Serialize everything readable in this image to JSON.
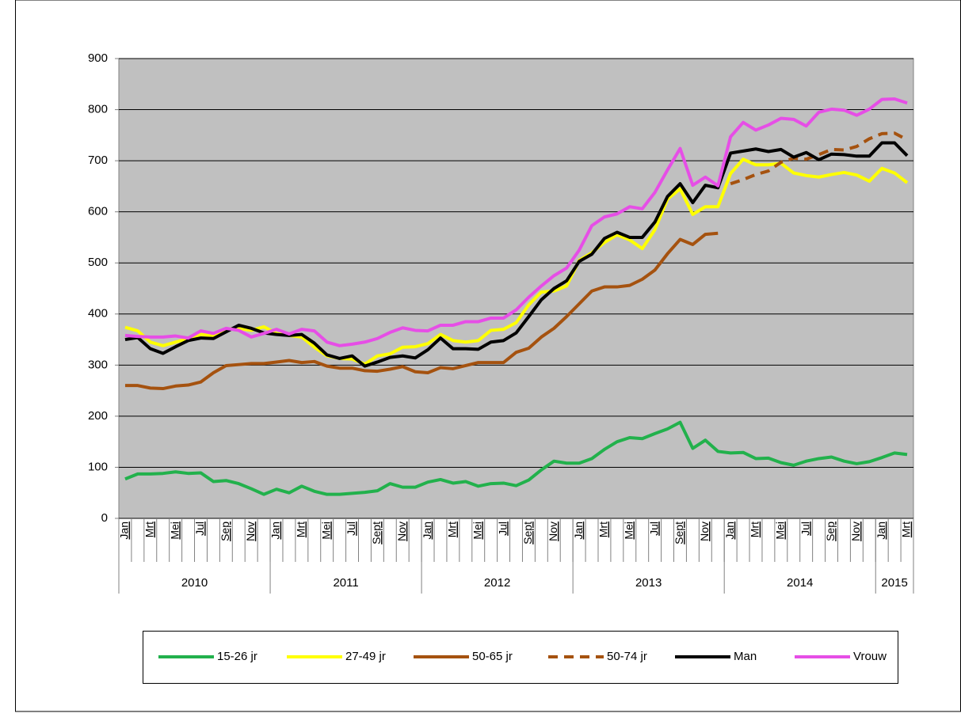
{
  "chart_data": {
    "type": "line",
    "categories": [
      "Jan",
      null,
      "Mrt",
      null,
      "Mei",
      null,
      "Jul",
      null,
      "Sep",
      null,
      "Nov",
      null,
      "Jan",
      null,
      "Mrt",
      null,
      "Mei",
      null,
      "Jul",
      null,
      "Sept",
      null,
      "Nov",
      null,
      "Jan",
      null,
      "Mrt",
      null,
      "Mei",
      null,
      "Jul",
      null,
      "Sept",
      null,
      "Nov",
      null,
      "Jan",
      null,
      "Mrt",
      null,
      "Mei",
      null,
      "Jul",
      null,
      "Sept",
      null,
      "Nov",
      null,
      "Jan",
      null,
      "Mrt",
      null,
      "Mei",
      null,
      "Jul",
      null,
      "Sep",
      null,
      "Nov",
      null,
      "Jan",
      null,
      "Mrt"
    ],
    "years": [
      "2010",
      "2011",
      "2012",
      "2013",
      "2014",
      "2015"
    ],
    "ylim": [
      0,
      900
    ],
    "yticks": [
      0,
      100,
      200,
      300,
      400,
      500,
      600,
      700,
      800,
      900
    ],
    "grid": true,
    "series": [
      {
        "name": "15-26 jr",
        "color": "#22b14c",
        "values": [
          77,
          87,
          87,
          88,
          91,
          88,
          89,
          72,
          74,
          68,
          58,
          47,
          57,
          50,
          63,
          53,
          47,
          47,
          49,
          51,
          54,
          68,
          61,
          61,
          71,
          76,
          69,
          72,
          63,
          68,
          69,
          64,
          75,
          95,
          112,
          108,
          108,
          117,
          135,
          150,
          158,
          156,
          166,
          175,
          188,
          137,
          153,
          131,
          128,
          129,
          117,
          118,
          109,
          104,
          112,
          117,
          120,
          112,
          107,
          111,
          119,
          128,
          125
        ]
      },
      {
        "name": "27-49 jr",
        "color": "#ffff00",
        "values": [
          374,
          367,
          345,
          338,
          345,
          352,
          360,
          357,
          370,
          372,
          368,
          375,
          362,
          358,
          355,
          335,
          318,
          313,
          312,
          302,
          318,
          322,
          335,
          336,
          342,
          360,
          348,
          345,
          348,
          368,
          370,
          383,
          418,
          443,
          445,
          455,
          505,
          520,
          540,
          555,
          545,
          528,
          565,
          625,
          645,
          595,
          610,
          610,
          675,
          703,
          692,
          692,
          695,
          676,
          671,
          668,
          673,
          677,
          672,
          660,
          685,
          676,
          657
        ]
      },
      {
        "name": "50-65 jr",
        "color": "#a5520f",
        "values": [
          260,
          260,
          255,
          254,
          259,
          261,
          267,
          285,
          299,
          301,
          303,
          303,
          306,
          309,
          305,
          307,
          298,
          294,
          294,
          289,
          288,
          292,
          297,
          287,
          285,
          295,
          293,
          299,
          305,
          305,
          305,
          325,
          333,
          355,
          372,
          395,
          420,
          445,
          453,
          453,
          456,
          468,
          486,
          518,
          546,
          536,
          556,
          558,
          null,
          null,
          null,
          null,
          null,
          null,
          null,
          null,
          null,
          null,
          null,
          null,
          null,
          null,
          null
        ]
      },
      {
        "name": "50-74 jr",
        "color": "#a5520f",
        "dashed": true,
        "values": [
          null,
          null,
          null,
          null,
          null,
          null,
          null,
          null,
          null,
          null,
          null,
          null,
          null,
          null,
          null,
          null,
          null,
          null,
          null,
          null,
          null,
          null,
          null,
          null,
          null,
          null,
          null,
          null,
          null,
          null,
          null,
          null,
          null,
          null,
          null,
          null,
          null,
          null,
          null,
          null,
          null,
          null,
          null,
          null,
          null,
          null,
          null,
          null,
          655,
          663,
          673,
          680,
          697,
          705,
          703,
          712,
          722,
          721,
          728,
          743,
          753,
          754,
          741
        ]
      },
      {
        "name": "Man",
        "color": "#000000",
        "values": [
          350,
          354,
          332,
          323,
          336,
          348,
          353,
          352,
          365,
          378,
          372,
          363,
          360,
          358,
          360,
          343,
          320,
          313,
          318,
          298,
          306,
          315,
          318,
          314,
          330,
          353,
          332,
          332,
          331,
          345,
          348,
          363,
          395,
          428,
          450,
          465,
          503,
          517,
          548,
          560,
          550,
          550,
          580,
          630,
          655,
          618,
          652,
          647,
          715,
          719,
          723,
          718,
          722,
          707,
          716,
          702,
          713,
          712,
          709,
          709,
          735,
          735,
          710
        ]
      },
      {
        "name": "Vrouw",
        "color": "#e64ee6",
        "values": [
          358,
          356,
          355,
          355,
          357,
          353,
          367,
          362,
          372,
          368,
          355,
          362,
          370,
          361,
          370,
          367,
          345,
          338,
          341,
          345,
          352,
          364,
          373,
          368,
          367,
          378,
          378,
          385,
          385,
          392,
          392,
          408,
          433,
          455,
          475,
          490,
          525,
          573,
          590,
          596,
          610,
          606,
          638,
          682,
          724,
          652,
          668,
          651,
          747,
          775,
          760,
          770,
          783,
          781,
          768,
          795,
          801,
          799,
          789,
          801,
          820,
          821,
          813
        ]
      }
    ]
  }
}
